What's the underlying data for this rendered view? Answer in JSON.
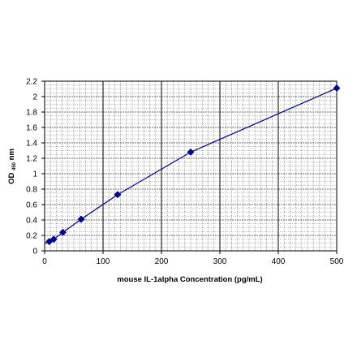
{
  "chart_data": {
    "type": "line",
    "xlabel": "mouse IL-1alpha Concentration (pg/mL)",
    "ylabel_main": "OD",
    "ylabel_sub": "450",
    "ylabel_unit": "nm",
    "xlim": [
      0,
      500
    ],
    "ylim": [
      0,
      2.2
    ],
    "x_ticks": [
      "0",
      "100",
      "200",
      "300",
      "400",
      "500"
    ],
    "y_ticks": [
      "0",
      "0.2",
      "0.4",
      "0.6",
      "0.8",
      "1",
      "1.2",
      "1.4",
      "1.6",
      "1.8",
      "2",
      "2.2"
    ],
    "grid": true,
    "legend": "none",
    "series": [
      {
        "x": [
          7.8,
          15.6,
          31.25,
          62.5,
          125,
          250,
          500
        ],
        "y": [
          0.12,
          0.15,
          0.24,
          0.41,
          0.73,
          1.28,
          2.11
        ],
        "color": "#00008B"
      }
    ],
    "blank_point": {
      "x": 0,
      "y": 0.09
    }
  }
}
